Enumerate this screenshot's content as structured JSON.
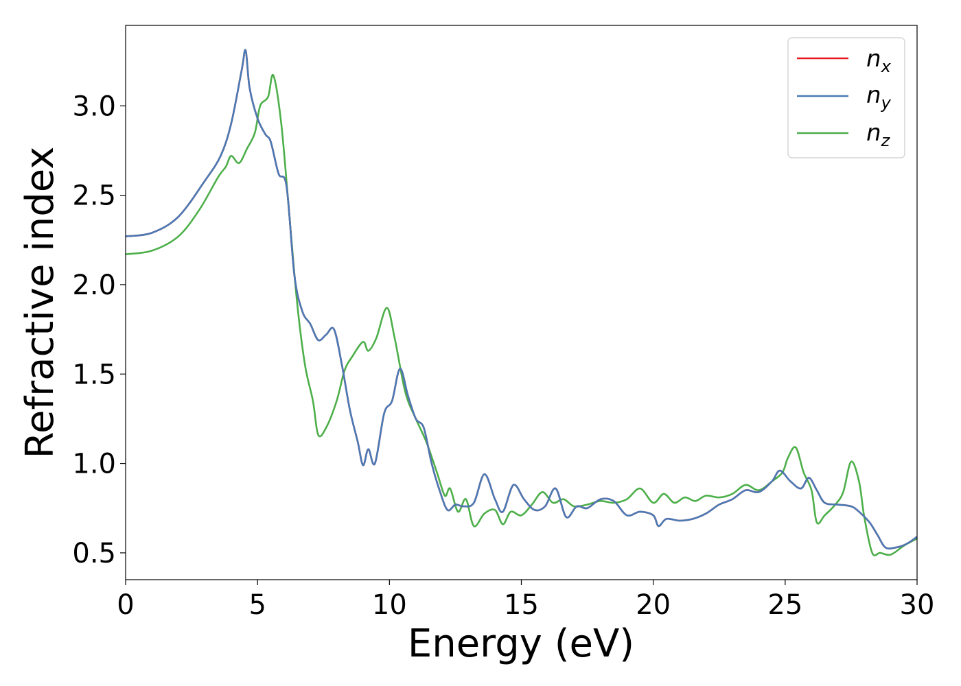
{
  "chart_data": {
    "type": "line",
    "title": "",
    "xlabel": "Energy (eV)",
    "ylabel": "Refractive index",
    "xlim": [
      0,
      30
    ],
    "ylim": [
      0.35,
      3.45
    ],
    "x_ticks": [
      "0",
      "5",
      "10",
      "15",
      "20",
      "25",
      "30"
    ],
    "y_ticks": [
      "0.5",
      "1.0",
      "1.5",
      "2.0",
      "2.5",
      "3.0"
    ],
    "grid": false,
    "legend_position": "top-right",
    "series": [
      {
        "name": "n_x",
        "legend_main": "n",
        "legend_sub": "x",
        "color": "#e41a1c",
        "points": [
          [
            0,
            2.27
          ],
          [
            1,
            2.29
          ],
          [
            2,
            2.38
          ],
          [
            3,
            2.58
          ],
          [
            3.6,
            2.72
          ],
          [
            4,
            2.9
          ],
          [
            4.4,
            3.2
          ],
          [
            4.55,
            3.31
          ],
          [
            4.7,
            3.1
          ],
          [
            5,
            2.93
          ],
          [
            5.3,
            2.84
          ],
          [
            5.5,
            2.8
          ],
          [
            5.8,
            2.62
          ],
          [
            6.1,
            2.55
          ],
          [
            6.4,
            2.05
          ],
          [
            6.7,
            1.85
          ],
          [
            7,
            1.78
          ],
          [
            7.3,
            1.69
          ],
          [
            7.6,
            1.72
          ],
          [
            7.9,
            1.75
          ],
          [
            8.2,
            1.55
          ],
          [
            8.5,
            1.3
          ],
          [
            8.8,
            1.12
          ],
          [
            9,
            0.99
          ],
          [
            9.2,
            1.08
          ],
          [
            9.45,
            1.0
          ],
          [
            9.8,
            1.28
          ],
          [
            10.1,
            1.35
          ],
          [
            10.4,
            1.53
          ],
          [
            10.7,
            1.38
          ],
          [
            11.0,
            1.25
          ],
          [
            11.3,
            1.2
          ],
          [
            11.6,
            1.0
          ],
          [
            11.9,
            0.85
          ],
          [
            12.2,
            0.74
          ],
          [
            12.5,
            0.77
          ],
          [
            12.8,
            0.76
          ],
          [
            13.2,
            0.78
          ],
          [
            13.6,
            0.94
          ],
          [
            14.0,
            0.8
          ],
          [
            14.3,
            0.73
          ],
          [
            14.7,
            0.88
          ],
          [
            15.1,
            0.8
          ],
          [
            15.5,
            0.74
          ],
          [
            15.9,
            0.76
          ],
          [
            16.3,
            0.86
          ],
          [
            16.7,
            0.7
          ],
          [
            17.1,
            0.76
          ],
          [
            17.5,
            0.75
          ],
          [
            18.0,
            0.8
          ],
          [
            18.5,
            0.79
          ],
          [
            19.0,
            0.71
          ],
          [
            19.5,
            0.73
          ],
          [
            20.0,
            0.71
          ],
          [
            20.2,
            0.65
          ],
          [
            20.5,
            0.69
          ],
          [
            21.0,
            0.68
          ],
          [
            21.5,
            0.69
          ],
          [
            22.0,
            0.72
          ],
          [
            22.5,
            0.77
          ],
          [
            23.0,
            0.8
          ],
          [
            23.5,
            0.85
          ],
          [
            24.0,
            0.84
          ],
          [
            24.5,
            0.9
          ],
          [
            24.8,
            0.96
          ],
          [
            25.2,
            0.9
          ],
          [
            25.6,
            0.86
          ],
          [
            25.9,
            0.92
          ],
          [
            26.2,
            0.85
          ],
          [
            26.5,
            0.78
          ],
          [
            27.0,
            0.77
          ],
          [
            27.5,
            0.76
          ],
          [
            27.8,
            0.73
          ],
          [
            28.2,
            0.67
          ],
          [
            28.5,
            0.6
          ],
          [
            28.8,
            0.53
          ],
          [
            29.2,
            0.53
          ],
          [
            29.6,
            0.55
          ],
          [
            30,
            0.59
          ]
        ]
      },
      {
        "name": "n_y",
        "legend_main": "n",
        "legend_sub": "y",
        "color": "#4a7ab5",
        "points": [
          [
            0,
            2.27
          ],
          [
            1,
            2.29
          ],
          [
            2,
            2.38
          ],
          [
            3,
            2.58
          ],
          [
            3.6,
            2.72
          ],
          [
            4,
            2.9
          ],
          [
            4.4,
            3.2
          ],
          [
            4.55,
            3.31
          ],
          [
            4.7,
            3.1
          ],
          [
            5,
            2.93
          ],
          [
            5.3,
            2.84
          ],
          [
            5.5,
            2.8
          ],
          [
            5.8,
            2.62
          ],
          [
            6.1,
            2.55
          ],
          [
            6.4,
            2.05
          ],
          [
            6.7,
            1.85
          ],
          [
            7,
            1.78
          ],
          [
            7.3,
            1.69
          ],
          [
            7.6,
            1.72
          ],
          [
            7.9,
            1.75
          ],
          [
            8.2,
            1.55
          ],
          [
            8.5,
            1.3
          ],
          [
            8.8,
            1.12
          ],
          [
            9,
            0.99
          ],
          [
            9.2,
            1.08
          ],
          [
            9.45,
            1.0
          ],
          [
            9.8,
            1.28
          ],
          [
            10.1,
            1.35
          ],
          [
            10.4,
            1.53
          ],
          [
            10.7,
            1.38
          ],
          [
            11.0,
            1.25
          ],
          [
            11.3,
            1.2
          ],
          [
            11.6,
            1.0
          ],
          [
            11.9,
            0.85
          ],
          [
            12.2,
            0.74
          ],
          [
            12.5,
            0.77
          ],
          [
            12.8,
            0.76
          ],
          [
            13.2,
            0.78
          ],
          [
            13.6,
            0.94
          ],
          [
            14.0,
            0.8
          ],
          [
            14.3,
            0.73
          ],
          [
            14.7,
            0.88
          ],
          [
            15.1,
            0.8
          ],
          [
            15.5,
            0.74
          ],
          [
            15.9,
            0.76
          ],
          [
            16.3,
            0.86
          ],
          [
            16.7,
            0.7
          ],
          [
            17.1,
            0.76
          ],
          [
            17.5,
            0.75
          ],
          [
            18.0,
            0.8
          ],
          [
            18.5,
            0.79
          ],
          [
            19.0,
            0.71
          ],
          [
            19.5,
            0.73
          ],
          [
            20.0,
            0.71
          ],
          [
            20.2,
            0.65
          ],
          [
            20.5,
            0.69
          ],
          [
            21.0,
            0.68
          ],
          [
            21.5,
            0.69
          ],
          [
            22.0,
            0.72
          ],
          [
            22.5,
            0.77
          ],
          [
            23.0,
            0.8
          ],
          [
            23.5,
            0.85
          ],
          [
            24.0,
            0.84
          ],
          [
            24.5,
            0.9
          ],
          [
            24.8,
            0.96
          ],
          [
            25.2,
            0.9
          ],
          [
            25.6,
            0.86
          ],
          [
            25.9,
            0.92
          ],
          [
            26.2,
            0.85
          ],
          [
            26.5,
            0.78
          ],
          [
            27.0,
            0.77
          ],
          [
            27.5,
            0.76
          ],
          [
            27.8,
            0.73
          ],
          [
            28.2,
            0.67
          ],
          [
            28.5,
            0.6
          ],
          [
            28.8,
            0.53
          ],
          [
            29.2,
            0.53
          ],
          [
            29.6,
            0.55
          ],
          [
            30,
            0.59
          ]
        ]
      },
      {
        "name": "n_z",
        "legend_main": "n",
        "legend_sub": "z",
        "color": "#4daf4a",
        "points": [
          [
            0,
            2.17
          ],
          [
            1,
            2.19
          ],
          [
            2,
            2.27
          ],
          [
            2.8,
            2.42
          ],
          [
            3.5,
            2.6
          ],
          [
            3.8,
            2.66
          ],
          [
            4.0,
            2.72
          ],
          [
            4.3,
            2.68
          ],
          [
            4.6,
            2.76
          ],
          [
            4.9,
            2.85
          ],
          [
            5.1,
            3.0
          ],
          [
            5.4,
            3.05
          ],
          [
            5.6,
            3.17
          ],
          [
            5.9,
            2.9
          ],
          [
            6.2,
            2.4
          ],
          [
            6.5,
            1.9
          ],
          [
            6.8,
            1.55
          ],
          [
            7.1,
            1.35
          ],
          [
            7.3,
            1.16
          ],
          [
            7.6,
            1.2
          ],
          [
            8.0,
            1.35
          ],
          [
            8.3,
            1.52
          ],
          [
            8.6,
            1.6
          ],
          [
            9.0,
            1.68
          ],
          [
            9.2,
            1.63
          ],
          [
            9.5,
            1.7
          ],
          [
            9.9,
            1.87
          ],
          [
            10.2,
            1.7
          ],
          [
            10.6,
            1.4
          ],
          [
            11.0,
            1.25
          ],
          [
            11.4,
            1.12
          ],
          [
            11.8,
            0.95
          ],
          [
            12.1,
            0.82
          ],
          [
            12.3,
            0.86
          ],
          [
            12.6,
            0.73
          ],
          [
            12.9,
            0.8
          ],
          [
            13.2,
            0.65
          ],
          [
            13.6,
            0.72
          ],
          [
            14.0,
            0.74
          ],
          [
            14.3,
            0.66
          ],
          [
            14.6,
            0.73
          ],
          [
            15.0,
            0.71
          ],
          [
            15.4,
            0.77
          ],
          [
            15.8,
            0.84
          ],
          [
            16.2,
            0.78
          ],
          [
            16.6,
            0.8
          ],
          [
            17.0,
            0.76
          ],
          [
            17.5,
            0.77
          ],
          [
            18.0,
            0.79
          ],
          [
            18.5,
            0.78
          ],
          [
            19.0,
            0.8
          ],
          [
            19.5,
            0.86
          ],
          [
            20.0,
            0.78
          ],
          [
            20.4,
            0.83
          ],
          [
            20.8,
            0.78
          ],
          [
            21.2,
            0.81
          ],
          [
            21.6,
            0.79
          ],
          [
            22.0,
            0.82
          ],
          [
            22.5,
            0.81
          ],
          [
            23.0,
            0.83
          ],
          [
            23.5,
            0.88
          ],
          [
            24.0,
            0.85
          ],
          [
            24.5,
            0.9
          ],
          [
            24.9,
            0.95
          ],
          [
            25.1,
            1.03
          ],
          [
            25.4,
            1.09
          ],
          [
            25.7,
            0.95
          ],
          [
            26.0,
            0.85
          ],
          [
            26.2,
            0.67
          ],
          [
            26.5,
            0.71
          ],
          [
            26.9,
            0.77
          ],
          [
            27.2,
            0.84
          ],
          [
            27.5,
            1.01
          ],
          [
            27.8,
            0.9
          ],
          [
            28.0,
            0.7
          ],
          [
            28.3,
            0.5
          ],
          [
            28.6,
            0.5
          ],
          [
            29.0,
            0.49
          ],
          [
            29.5,
            0.54
          ],
          [
            30,
            0.58
          ]
        ]
      }
    ]
  }
}
